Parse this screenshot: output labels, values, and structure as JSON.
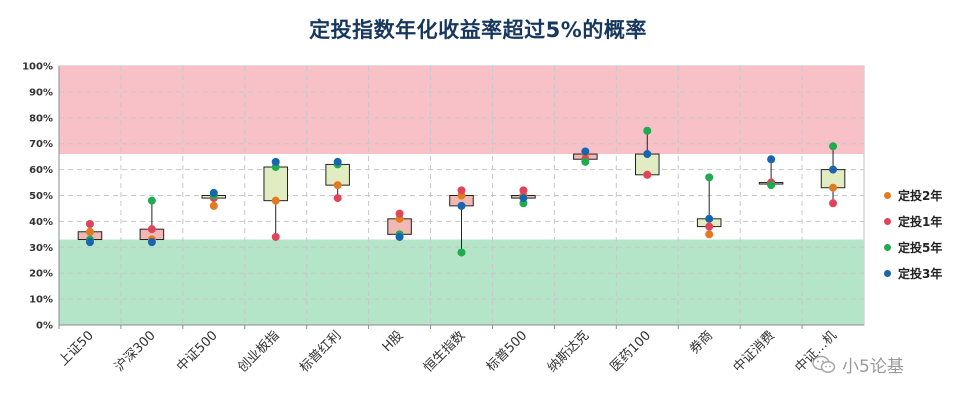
{
  "chart_data": {
    "type": "boxplot",
    "title": "定投指数年化收益率超过5%的概率",
    "xlabel": "",
    "ylabel": "",
    "ylim": [
      0,
      100
    ],
    "y_ticks": [
      "0%",
      "10%",
      "20%",
      "30%",
      "40%",
      "50%",
      "60%",
      "70%",
      "80%",
      "90%",
      "100%"
    ],
    "bands": [
      {
        "name": "high",
        "from": 66,
        "to": 100,
        "color": "#f8c1c8"
      },
      {
        "name": "low",
        "from": 0,
        "to": 33,
        "color": "#b4e5c8"
      }
    ],
    "categories": [
      "上证50",
      "沪深300",
      "中证500",
      "创业板指",
      "标普红利",
      "H股",
      "恒生指数",
      "标普500",
      "纳斯达克",
      "医药100",
      "券商",
      "中证消费",
      "中证…机"
    ],
    "box_colors": [
      "#f2b8b3",
      "#f2b8b3",
      "#e2ecc3",
      "#e2ecc3",
      "#e2ecc3",
      "#f2b8b3",
      "#f2b8b3",
      "#f2b8b3",
      "#f2b8b3",
      "#e2ecc3",
      "#e2ecc3",
      "#e2ecc3",
      "#e2ecc3"
    ],
    "series": [
      {
        "name": "定投2年",
        "color": "#e07b24",
        "values": [
          36,
          33,
          46,
          48,
          54,
          41,
          50,
          50,
          66,
          58,
          35,
          55,
          53
        ]
      },
      {
        "name": "定投1年",
        "color": "#e0445a",
        "values": [
          39,
          37,
          49,
          34,
          49,
          43,
          52,
          52,
          64,
          58,
          38,
          55,
          47
        ]
      },
      {
        "name": "定投5年",
        "color": "#22aa50",
        "values": [
          33,
          48,
          50,
          61,
          62,
          35,
          28,
          47,
          63,
          75,
          57,
          54,
          69
        ]
      },
      {
        "name": "定投3年",
        "color": "#1a64b0",
        "values": [
          32,
          32,
          51,
          63,
          63,
          34,
          46,
          49,
          67,
          66,
          41,
          64,
          60
        ]
      }
    ]
  },
  "legend": [
    "定投2年",
    "定投1年",
    "定投5年",
    "定投3年"
  ],
  "watermark": {
    "text": "小5论基"
  }
}
